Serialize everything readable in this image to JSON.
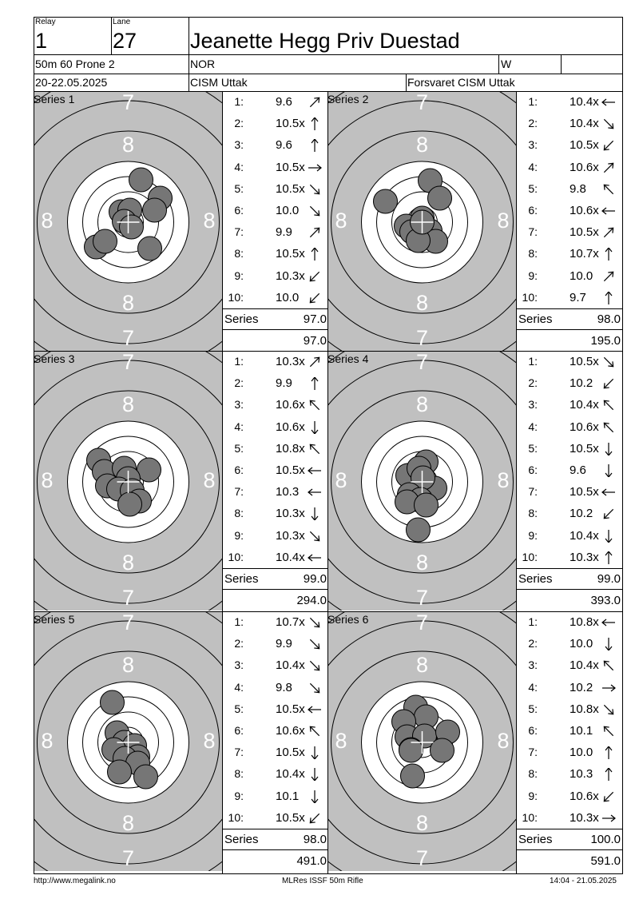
{
  "header": {
    "relay_label": "Relay",
    "relay": "1",
    "lane_label": "Lane",
    "lane": "27",
    "name": "Jeanette Hegg Priv Duestad",
    "event": "50m 60 Prone 2",
    "nation": "NOR",
    "gender": "W",
    "date": "20-22.05.2025",
    "competition": "CISM Uttak",
    "club": "Forsvaret CISM Uttak"
  },
  "target_rings": {
    "outer": "7",
    "inner": "8"
  },
  "totals_label": "Series",
  "series": [
    {
      "label": "Series 1",
      "total": "97.0",
      "cumulative": "97.0",
      "shots": [
        {
          "n": "1:",
          "v": "9.6",
          "dir": "ne"
        },
        {
          "n": "2:",
          "v": "10.5x",
          "dir": "n"
        },
        {
          "n": "3:",
          "v": "9.6",
          "dir": "n"
        },
        {
          "n": "4:",
          "v": "10.5x",
          "dir": "e"
        },
        {
          "n": "5:",
          "v": "10.5x",
          "dir": "se"
        },
        {
          "n": "6:",
          "v": "10.0",
          "dir": "se"
        },
        {
          "n": "7:",
          "v": "9.9",
          "dir": "ne"
        },
        {
          "n": "8:",
          "v": "10.5x",
          "dir": "n"
        },
        {
          "n": "9:",
          "v": "10.3x",
          "dir": "sw"
        },
        {
          "n": "10:",
          "v": "10.0",
          "dir": "sw"
        }
      ],
      "holes": [
        [
          16,
          -53
        ],
        [
          40,
          -30
        ],
        [
          -9,
          -13
        ],
        [
          2,
          -15
        ],
        [
          33,
          -15
        ],
        [
          -5,
          -1
        ],
        [
          4,
          6
        ],
        [
          -40,
          31
        ],
        [
          -29,
          24
        ],
        [
          27,
          33
        ]
      ]
    },
    {
      "label": "Series 2",
      "total": "98.0",
      "cumulative": "195.0",
      "shots": [
        {
          "n": "1:",
          "v": "10.4x",
          "dir": "w"
        },
        {
          "n": "2:",
          "v": "10.4x",
          "dir": "se"
        },
        {
          "n": "3:",
          "v": "10.5x",
          "dir": "sw"
        },
        {
          "n": "4:",
          "v": "10.6x",
          "dir": "ne"
        },
        {
          "n": "5:",
          "v": "9.8",
          "dir": "nw"
        },
        {
          "n": "6:",
          "v": "10.6x",
          "dir": "w"
        },
        {
          "n": "7:",
          "v": "10.5x",
          "dir": "ne"
        },
        {
          "n": "8:",
          "v": "10.7x",
          "dir": "n"
        },
        {
          "n": "9:",
          "v": "10.0",
          "dir": "ne"
        },
        {
          "n": "10:",
          "v": "9.7",
          "dir": "n"
        }
      ],
      "holes": [
        [
          10,
          -52
        ],
        [
          22,
          -30
        ],
        [
          -46,
          -26
        ],
        [
          0,
          -5
        ],
        [
          -20,
          5
        ],
        [
          -13,
          12
        ],
        [
          10,
          11
        ],
        [
          17,
          24
        ],
        [
          -5,
          23
        ],
        [
          0,
          0
        ]
      ]
    },
    {
      "label": "Series 3",
      "total": "99.0",
      "cumulative": "294.0",
      "shots": [
        {
          "n": "1:",
          "v": "10.3x",
          "dir": "ne"
        },
        {
          "n": "2:",
          "v": "9.9",
          "dir": "n"
        },
        {
          "n": "3:",
          "v": "10.6x",
          "dir": "nw"
        },
        {
          "n": "4:",
          "v": "10.6x",
          "dir": "s"
        },
        {
          "n": "5:",
          "v": "10.8x",
          "dir": "nw"
        },
        {
          "n": "6:",
          "v": "10.5x",
          "dir": "w"
        },
        {
          "n": "7:",
          "v": "10.3",
          "dir": "w"
        },
        {
          "n": "8:",
          "v": "10.3x",
          "dir": "s"
        },
        {
          "n": "9:",
          "v": "10.3x",
          "dir": "se"
        },
        {
          "n": "10:",
          "v": "10.4x",
          "dir": "w"
        }
      ],
      "holes": [
        [
          -37,
          -27
        ],
        [
          -30,
          -13
        ],
        [
          -5,
          -17
        ],
        [
          26,
          -15
        ],
        [
          0,
          -4
        ],
        [
          -26,
          5
        ],
        [
          -12,
          9
        ],
        [
          5,
          11
        ],
        [
          14,
          24
        ],
        [
          2,
          28
        ]
      ]
    },
    {
      "label": "Series 4",
      "total": "99.0",
      "cumulative": "393.0",
      "shots": [
        {
          "n": "1:",
          "v": "10.5x",
          "dir": "se"
        },
        {
          "n": "2:",
          "v": "10.2",
          "dir": "sw"
        },
        {
          "n": "3:",
          "v": "10.4x",
          "dir": "nw"
        },
        {
          "n": "4:",
          "v": "10.6x",
          "dir": "nw"
        },
        {
          "n": "5:",
          "v": "10.5x",
          "dir": "s"
        },
        {
          "n": "6:",
          "v": "9.6",
          "dir": "s"
        },
        {
          "n": "7:",
          "v": "10.5x",
          "dir": "w"
        },
        {
          "n": "8:",
          "v": "10.2",
          "dir": "sw"
        },
        {
          "n": "9:",
          "v": "10.4x",
          "dir": "s"
        },
        {
          "n": "10:",
          "v": "10.3x",
          "dir": "n"
        }
      ],
      "holes": [
        [
          5,
          -25
        ],
        [
          -18,
          -8
        ],
        [
          -4,
          -17
        ],
        [
          16,
          8
        ],
        [
          1,
          -5
        ],
        [
          -16,
          16
        ],
        [
          -2,
          22
        ],
        [
          -19,
          25
        ],
        [
          5,
          29
        ],
        [
          -5,
          60
        ]
      ]
    },
    {
      "label": "Series 5",
      "total": "98.0",
      "cumulative": "491.0",
      "shots": [
        {
          "n": "1:",
          "v": "10.7x",
          "dir": "se"
        },
        {
          "n": "2:",
          "v": "9.9",
          "dir": "se"
        },
        {
          "n": "3:",
          "v": "10.4x",
          "dir": "se"
        },
        {
          "n": "4:",
          "v": "9.8",
          "dir": "se"
        },
        {
          "n": "5:",
          "v": "10.5x",
          "dir": "w"
        },
        {
          "n": "6:",
          "v": "10.6x",
          "dir": "nw"
        },
        {
          "n": "7:",
          "v": "10.5x",
          "dir": "s"
        },
        {
          "n": "8:",
          "v": "10.4x",
          "dir": "s"
        },
        {
          "n": "9:",
          "v": "10.1",
          "dir": "s"
        },
        {
          "n": "10:",
          "v": "10.5x",
          "dir": "sw"
        }
      ],
      "holes": [
        [
          -20,
          -50
        ],
        [
          -14,
          -12
        ],
        [
          -5,
          0
        ],
        [
          8,
          4
        ],
        [
          12,
          18
        ],
        [
          -18,
          9
        ],
        [
          -4,
          20
        ],
        [
          12,
          26
        ],
        [
          -11,
          37
        ],
        [
          22,
          43
        ]
      ]
    },
    {
      "label": "Series 6",
      "total": "100.0",
      "cumulative": "591.0",
      "shots": [
        {
          "n": "1:",
          "v": "10.8x",
          "dir": "w"
        },
        {
          "n": "2:",
          "v": "10.0",
          "dir": "s"
        },
        {
          "n": "3:",
          "v": "10.4x",
          "dir": "nw"
        },
        {
          "n": "4:",
          "v": "10.2",
          "dir": "e"
        },
        {
          "n": "5:",
          "v": "10.8x",
          "dir": "se"
        },
        {
          "n": "6:",
          "v": "10.1",
          "dir": "nw"
        },
        {
          "n": "7:",
          "v": "10.0",
          "dir": "n"
        },
        {
          "n": "8:",
          "v": "10.3",
          "dir": "n"
        },
        {
          "n": "9:",
          "v": "10.6x",
          "dir": "sw"
        },
        {
          "n": "10:",
          "v": "10.3x",
          "dir": "e"
        }
      ],
      "holes": [
        [
          -8,
          -44
        ],
        [
          5,
          -32
        ],
        [
          -23,
          -26
        ],
        [
          -19,
          -7
        ],
        [
          3,
          -8
        ],
        [
          32,
          -13
        ],
        [
          -14,
          9
        ],
        [
          25,
          10
        ],
        [
          -14,
          10
        ],
        [
          -12,
          42
        ]
      ]
    }
  ],
  "footer": {
    "left": "http://www.megalink.no",
    "center": "MLRes ISSF 50m Rifle",
    "right": "14:04 - 21.05.2025"
  }
}
